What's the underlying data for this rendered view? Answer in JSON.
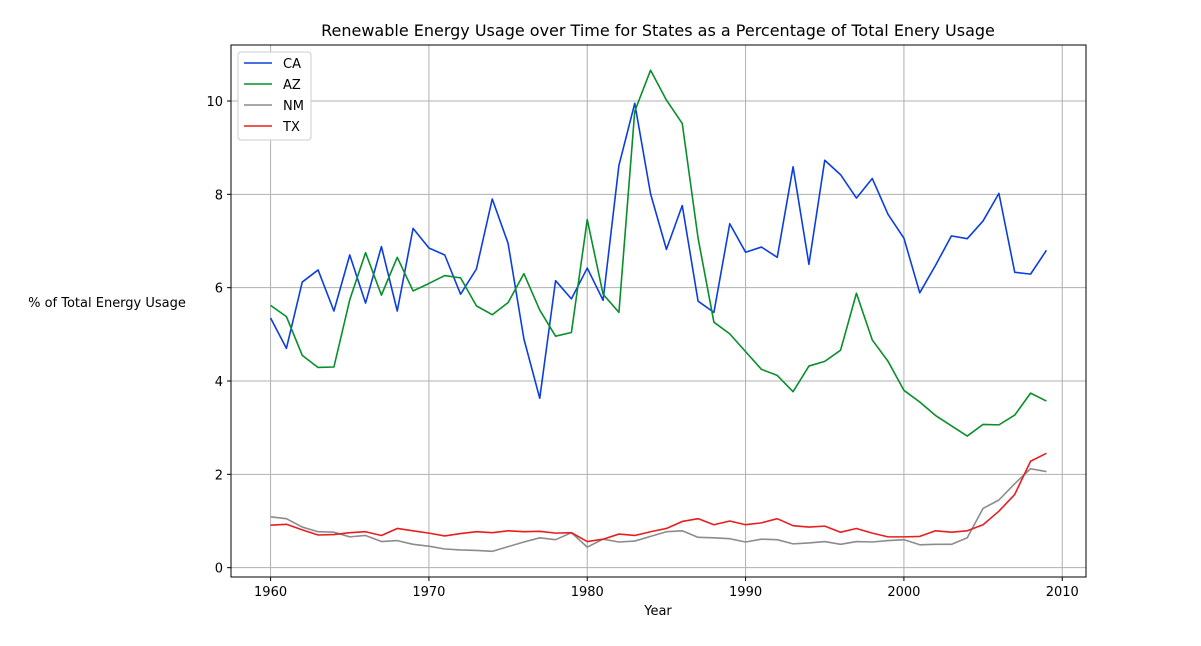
{
  "chart_data": {
    "type": "line",
    "title": "Renewable Energy Usage over Time for States as a Percentage of Total Enery Usage",
    "xlabel": "Year",
    "ylabel": "% of Total Energy Usage",
    "xlim": [
      1957.5,
      2011.5
    ],
    "ylim": [
      -0.2,
      11.2
    ],
    "xticks": [
      1960,
      1970,
      1980,
      1990,
      2000,
      2010
    ],
    "yticks": [
      0,
      2,
      4,
      6,
      8,
      10
    ],
    "grid": true,
    "legend_position": "top-left",
    "x": [
      1960,
      1961,
      1962,
      1963,
      1964,
      1965,
      1966,
      1967,
      1968,
      1969,
      1970,
      1971,
      1972,
      1973,
      1974,
      1975,
      1976,
      1977,
      1978,
      1979,
      1980,
      1981,
      1982,
      1983,
      1984,
      1985,
      1986,
      1987,
      1988,
      1989,
      1990,
      1991,
      1992,
      1993,
      1994,
      1995,
      1996,
      1997,
      1998,
      1999,
      2000,
      2001,
      2002,
      2003,
      2004,
      2005,
      2006,
      2007,
      2008,
      2009
    ],
    "series": [
      {
        "name": "CA",
        "color": "#0b3ee0",
        "values": [
          5.35,
          4.7,
          6.12,
          6.38,
          5.5,
          6.7,
          5.67,
          6.88,
          5.5,
          7.27,
          6.85,
          6.7,
          5.86,
          6.4,
          7.9,
          6.95,
          4.9,
          3.63,
          6.15,
          5.76,
          6.42,
          5.73,
          8.62,
          9.95,
          8.01,
          6.82,
          7.76,
          5.71,
          5.47,
          7.37,
          6.76,
          6.87,
          6.65,
          8.59,
          6.5,
          8.73,
          8.42,
          7.92,
          8.34,
          7.57,
          7.06,
          5.89,
          6.48,
          7.11,
          7.05,
          7.43,
          8.02,
          6.33,
          6.29,
          6.8
        ]
      },
      {
        "name": "AZ",
        "color": "#078f2a",
        "values": [
          5.62,
          5.38,
          4.55,
          4.29,
          4.3,
          5.74,
          6.75,
          5.84,
          6.65,
          5.93,
          6.09,
          6.26,
          6.21,
          5.61,
          5.42,
          5.68,
          6.3,
          5.52,
          4.96,
          5.04,
          7.46,
          5.86,
          5.47,
          9.78,
          10.66,
          10.02,
          9.52,
          7.06,
          5.26,
          5.01,
          4.63,
          4.25,
          4.12,
          3.77,
          4.32,
          4.42,
          4.66,
          5.88,
          4.88,
          4.42,
          3.8,
          3.55,
          3.26,
          3.04,
          2.82,
          3.07,
          3.06,
          3.27,
          3.74,
          3.57
        ]
      },
      {
        "name": "NM",
        "color": "#8c8c8c",
        "values": [
          1.09,
          1.05,
          0.87,
          0.77,
          0.76,
          0.66,
          0.69,
          0.56,
          0.58,
          0.5,
          0.46,
          0.4,
          0.38,
          0.37,
          0.35,
          0.45,
          0.55,
          0.64,
          0.6,
          0.75,
          0.44,
          0.61,
          0.55,
          0.57,
          0.67,
          0.77,
          0.79,
          0.65,
          0.64,
          0.62,
          0.55,
          0.61,
          0.6,
          0.51,
          0.53,
          0.56,
          0.5,
          0.56,
          0.55,
          0.58,
          0.6,
          0.49,
          0.5,
          0.5,
          0.64,
          1.27,
          1.45,
          1.8,
          2.12,
          2.06
        ]
      },
      {
        "name": "TX",
        "color": "#e81e1e",
        "values": [
          0.91,
          0.93,
          0.81,
          0.7,
          0.71,
          0.75,
          0.77,
          0.69,
          0.84,
          0.79,
          0.74,
          0.68,
          0.73,
          0.77,
          0.75,
          0.79,
          0.77,
          0.78,
          0.74,
          0.75,
          0.56,
          0.61,
          0.72,
          0.69,
          0.77,
          0.84,
          0.99,
          1.05,
          0.92,
          1.0,
          0.92,
          0.96,
          1.05,
          0.9,
          0.87,
          0.89,
          0.76,
          0.84,
          0.74,
          0.66,
          0.66,
          0.67,
          0.79,
          0.76,
          0.79,
          0.92,
          1.21,
          1.57,
          2.28,
          2.45
        ]
      }
    ]
  }
}
